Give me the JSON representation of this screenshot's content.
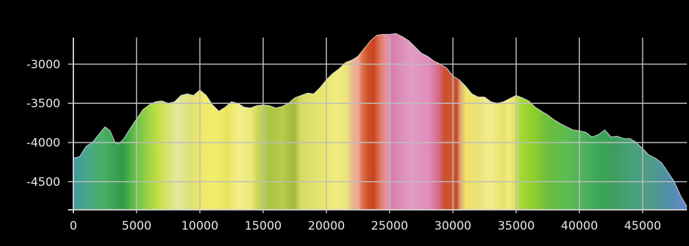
{
  "chart_data": {
    "type": "area",
    "title": "",
    "xlabel": "",
    "ylabel": "",
    "grid": true,
    "legend": "none",
    "xlim": [
      0,
      48500
    ],
    "ylim": [
      -4850,
      -2600
    ],
    "x_ticks": [
      0,
      5000,
      10000,
      15000,
      20000,
      25000,
      30000,
      35000,
      40000,
      45000
    ],
    "x_tick_labels": [
      "0",
      "5000",
      "10000",
      "15000",
      "20000",
      "25000",
      "30000",
      "35000",
      "40000",
      "45000"
    ],
    "y_ticks": [
      -3000,
      -3500,
      -4000,
      -4500
    ],
    "y_tick_labels": [
      "-3000",
      "-3500",
      "-4000",
      "-4500"
    ],
    "series": [
      {
        "x": [
          0,
          500,
          1000,
          1500,
          2000,
          2500,
          2900,
          3300,
          3600,
          4000,
          4500,
          5000,
          5500,
          6000,
          6500,
          7000,
          7500,
          8000,
          8500,
          9000,
          9500,
          10000,
          10500,
          11000,
          11500,
          12000,
          12500,
          13000,
          13500,
          14000,
          14500,
          15000,
          15500,
          16000,
          16500,
          17000,
          17500,
          18000,
          18500,
          19000,
          19500,
          20000,
          20500,
          21000,
          21500,
          22000,
          22500,
          23000,
          23500,
          24000,
          24500,
          25000,
          25500,
          26000,
          26500,
          27000,
          27500,
          28000,
          28500,
          29000,
          29500,
          30000,
          30500,
          31000,
          31500,
          32000,
          32500,
          33000,
          33500,
          34000,
          34500,
          35000,
          35500,
          36000,
          36500,
          37000,
          37500,
          38000,
          38500,
          39000,
          39500,
          40000,
          40500,
          41000,
          41500,
          42000,
          42500,
          43000,
          43500,
          44000,
          44500,
          45000,
          45500,
          46000,
          46500,
          47000,
          47500,
          48000,
          48500
        ],
        "y": [
          -4200,
          -4180,
          -4050,
          -4000,
          -3900,
          -3800,
          -3850,
          -4000,
          -4020,
          -3950,
          -3820,
          -3700,
          -3580,
          -3520,
          -3480,
          -3470,
          -3500,
          -3480,
          -3400,
          -3380,
          -3400,
          -3330,
          -3400,
          -3520,
          -3600,
          -3550,
          -3480,
          -3500,
          -3550,
          -3560,
          -3530,
          -3520,
          -3530,
          -3560,
          -3540,
          -3500,
          -3430,
          -3400,
          -3370,
          -3380,
          -3300,
          -3200,
          -3120,
          -3060,
          -2980,
          -2950,
          -2900,
          -2800,
          -2700,
          -2630,
          -2620,
          -2620,
          -2610,
          -2650,
          -2700,
          -2780,
          -2860,
          -2900,
          -2960,
          -3000,
          -3050,
          -3150,
          -3200,
          -3280,
          -3380,
          -3420,
          -3420,
          -3480,
          -3500,
          -3480,
          -3440,
          -3400,
          -3430,
          -3470,
          -3550,
          -3600,
          -3650,
          -3710,
          -3760,
          -3800,
          -3840,
          -3850,
          -3870,
          -3930,
          -3900,
          -3840,
          -3930,
          -3920,
          -3950,
          -3950,
          -4000,
          -4080,
          -4160,
          -4200,
          -4260,
          -4380,
          -4500,
          -4680,
          -4820
        ]
      }
    ]
  }
}
